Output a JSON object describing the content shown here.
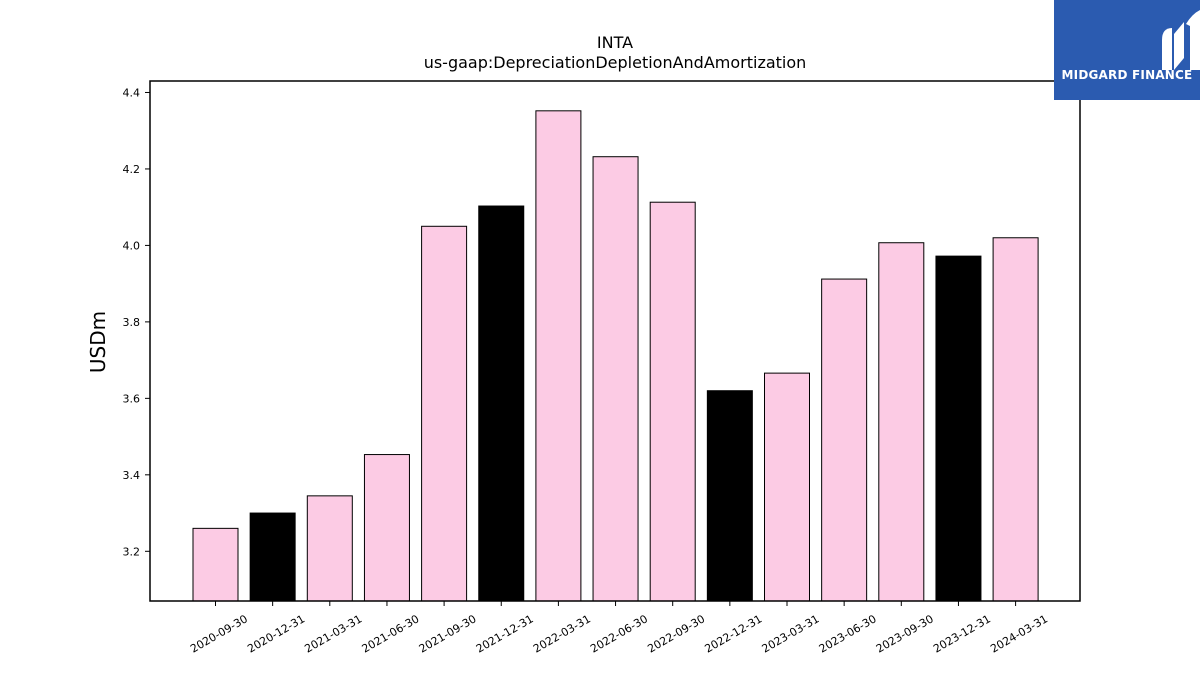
{
  "brand": {
    "name": "MIDGARD FINANCE",
    "logo_icon": "midgard-m-icon",
    "color": "#2b5bb0"
  },
  "chart_data": {
    "type": "bar",
    "title": "INTA",
    "subtitle": "us-gaap:DepreciationDepletionAndAmortization",
    "ylabel": "USDm",
    "xlabel": "",
    "ylim": [
      3.07,
      4.43
    ],
    "yticks": [
      "3.2",
      "3.4",
      "3.6",
      "3.8",
      "4.0",
      "4.2",
      "4.4"
    ],
    "categories": [
      "2020-09-30",
      "2020-12-31",
      "2021-03-31",
      "2021-06-30",
      "2021-09-30",
      "2021-12-31",
      "2022-03-31",
      "2022-06-30",
      "2022-09-30",
      "2022-12-31",
      "2023-03-31",
      "2023-06-30",
      "2023-09-30",
      "2023-12-31",
      "2024-03-31"
    ],
    "values": [
      3.26,
      3.3,
      3.345,
      3.453,
      4.05,
      4.103,
      4.352,
      4.232,
      4.113,
      3.62,
      3.666,
      3.912,
      4.007,
      3.972,
      4.02
    ],
    "colors": {
      "default": "#fccbe4",
      "highlight": "#000000",
      "edge": "#000000"
    },
    "highlight_indices": [
      1,
      5,
      9,
      13
    ]
  }
}
